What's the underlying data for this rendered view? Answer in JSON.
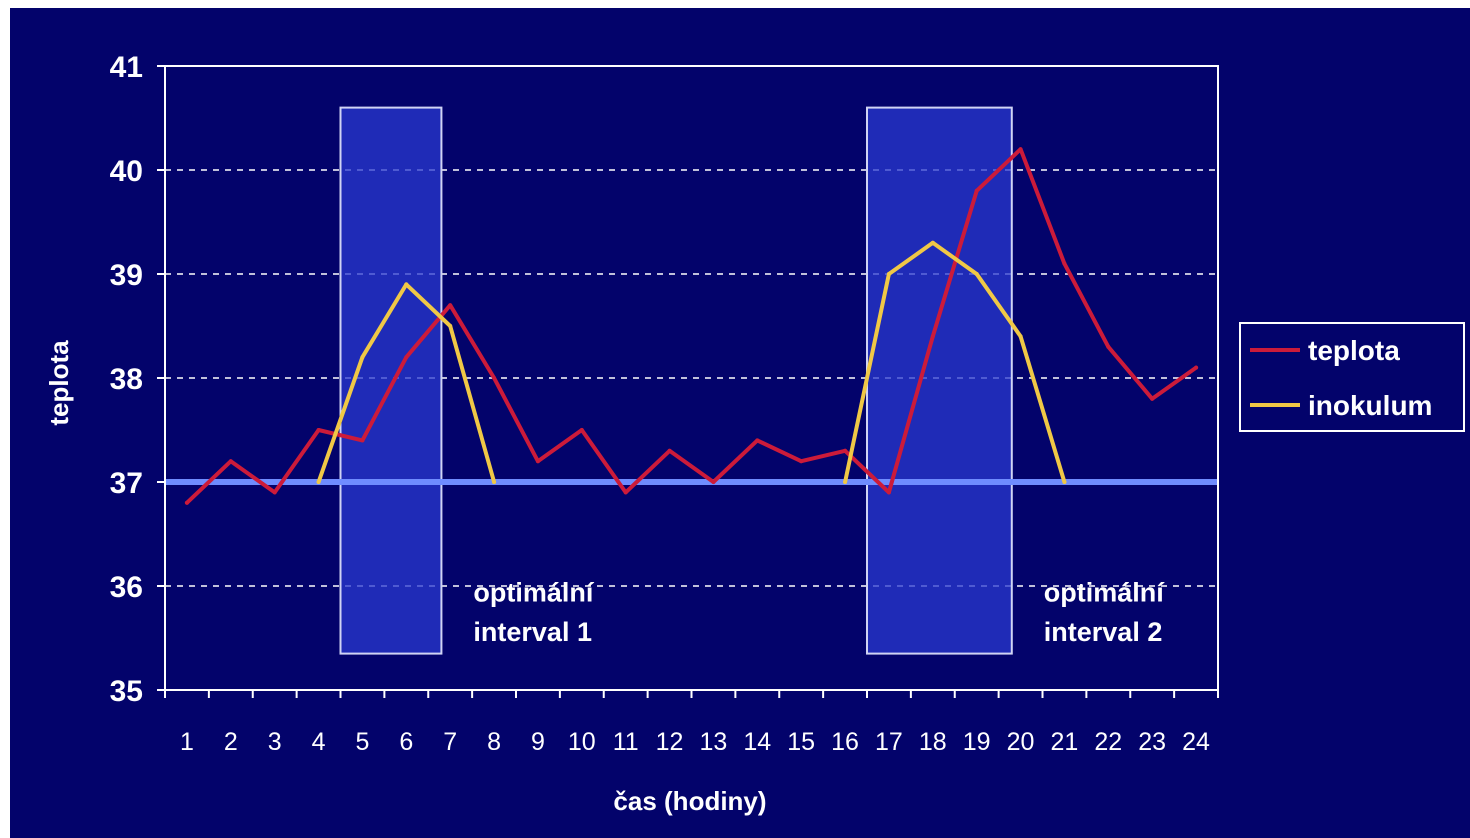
{
  "chart_data": {
    "type": "line",
    "title": "",
    "xlabel": "čas (hodiny)",
    "ylabel": "teplota",
    "x": [
      1,
      2,
      3,
      4,
      5,
      6,
      7,
      8,
      9,
      10,
      11,
      12,
      13,
      14,
      15,
      16,
      17,
      18,
      19,
      20,
      21,
      22,
      23,
      24
    ],
    "x_tick_labels": [
      "1",
      "2",
      "3",
      "4",
      "5",
      "6",
      "7",
      "8",
      "9",
      "10",
      "11",
      "12",
      "13",
      "14",
      "15",
      "16",
      "17",
      "18",
      "19",
      "20",
      "21",
      "22",
      "23",
      "24"
    ],
    "y_tick_labels": [
      "35",
      "36",
      "37",
      "38",
      "39",
      "40",
      "41"
    ],
    "ylim": [
      35,
      41
    ],
    "grid": "horizontal dashed",
    "legend": "right",
    "reference_line": {
      "y": 37,
      "color": "#6f8cff"
    },
    "series": [
      {
        "name": "teplota",
        "color": "#cc1b3a",
        "values": [
          36.8,
          37.2,
          36.9,
          37.5,
          37.4,
          38.2,
          38.7,
          38.0,
          37.2,
          37.5,
          36.9,
          37.3,
          37.0,
          37.4,
          37.2,
          37.3,
          36.9,
          38.4,
          39.8,
          40.2,
          39.1,
          38.3,
          37.8,
          38.1
        ]
      },
      {
        "name": "inokulum",
        "color": "#f0c846",
        "values": [
          null,
          null,
          null,
          37.0,
          38.2,
          38.9,
          38.5,
          37.0,
          null,
          null,
          null,
          null,
          null,
          null,
          null,
          37.0,
          39.0,
          39.3,
          39.0,
          38.4,
          37.0,
          null,
          null,
          null
        ]
      }
    ],
    "highlight_intervals": [
      {
        "x_from": 4.5,
        "x_to": 6.8,
        "y_from": 35.35,
        "y_to": 40.6,
        "label_line1": "optimální",
        "label_line2": "interval 1"
      },
      {
        "x_from": 16.5,
        "x_to": 19.8,
        "y_from": 35.35,
        "y_to": 40.6,
        "label_line1": "optimální",
        "label_line2": "interval 2"
      }
    ]
  }
}
